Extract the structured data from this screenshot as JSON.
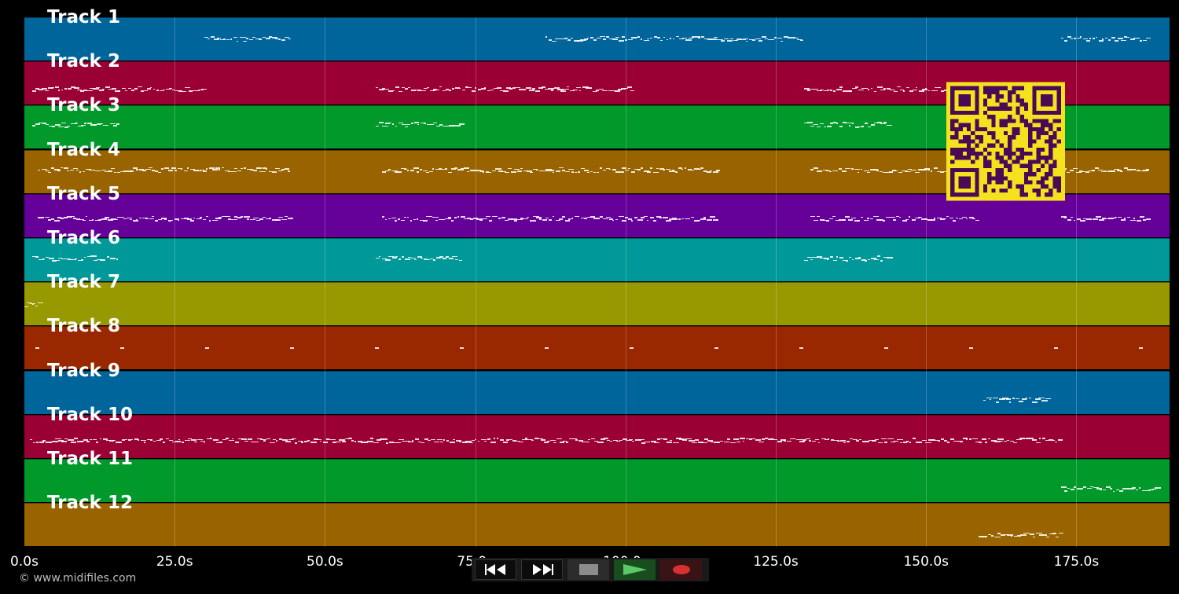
{
  "timeline": {
    "min": 0,
    "max": 190.5,
    "ticks": [
      {
        "value": 0,
        "label": "0.0s"
      },
      {
        "value": 25,
        "label": "25.0s"
      },
      {
        "value": 50,
        "label": "50.0s"
      },
      {
        "value": 75,
        "label": "75.0s"
      },
      {
        "value": 100,
        "label": "100.0s"
      },
      {
        "value": 125,
        "label": "125.0s"
      },
      {
        "value": 150,
        "label": "150.0s"
      },
      {
        "value": 175,
        "label": "175.0s"
      }
    ]
  },
  "tracks": [
    {
      "name": "Track 1",
      "color": "#00659a"
    },
    {
      "name": "Track 2",
      "color": "#9a0033"
    },
    {
      "name": "Track 3",
      "color": "#00992a"
    },
    {
      "name": "Track 4",
      "color": "#996400"
    },
    {
      "name": "Track 5",
      "color": "#650099"
    },
    {
      "name": "Track 6",
      "color": "#009898"
    },
    {
      "name": "Track 7",
      "color": "#989800"
    },
    {
      "name": "Track 8",
      "color": "#992700"
    },
    {
      "name": "Track 9",
      "color": "#00659a"
    },
    {
      "name": "Track 10",
      "color": "#9a0033"
    },
    {
      "name": "Track 11",
      "color": "#00992a"
    },
    {
      "name": "Track 12",
      "color": "#996400"
    }
  ],
  "footer": {
    "copyright": "© www.midifiles.com"
  },
  "transport": {
    "rewind_icon": "rewind-icon",
    "fast_forward_icon": "fast-forward-icon",
    "stop_icon": "stop-icon",
    "play_icon": "play-icon",
    "record_icon": "record-icon"
  },
  "qr_code": {
    "fg": "#f5e21e",
    "bg": "#4a0a55"
  }
}
